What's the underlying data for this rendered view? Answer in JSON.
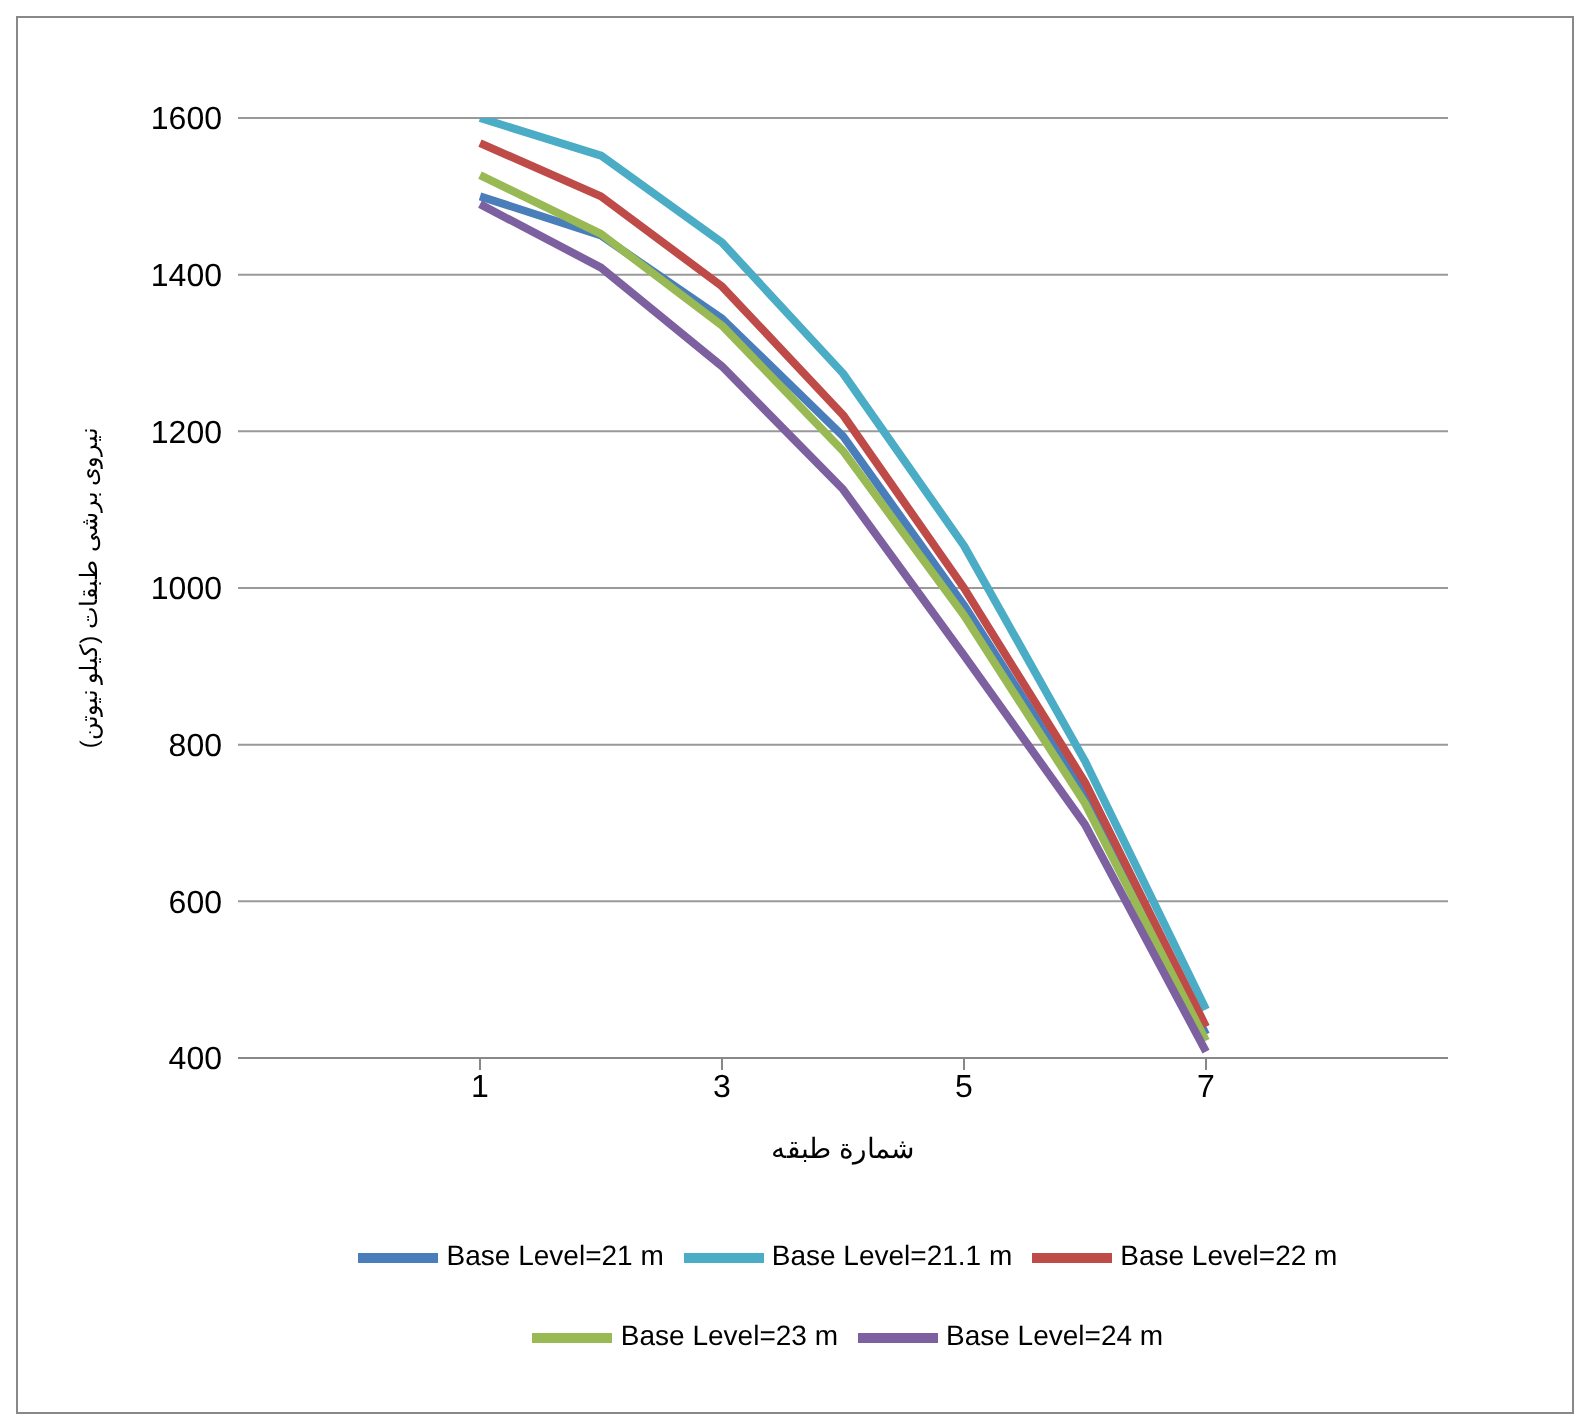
{
  "chart_data": {
    "type": "line",
    "xlabel": "شمارة طبقه",
    "ylabel": "نیروی برشی طبقات (کیلو نیوتن)",
    "x": [
      1,
      2,
      3,
      4,
      5,
      6,
      7
    ],
    "xlim": [
      -1,
      9
    ],
    "xticks": [
      1,
      3,
      5,
      7
    ],
    "ylim": [
      400,
      1600
    ],
    "yticks": [
      400,
      600,
      800,
      1000,
      1200,
      1400,
      1600
    ],
    "grid": "y",
    "legend": "bottom",
    "marker": "none",
    "line_style": "solid",
    "series": [
      {
        "name": "Base Level=21 m",
        "color": "#4a7ebb",
        "values": [
          1500,
          1450,
          1344,
          1194,
          978,
          736,
          430
        ]
      },
      {
        "name": "Base Level=21.1 m",
        "color": "#4bacc6",
        "values": [
          1600,
          1552,
          1441,
          1274,
          1054,
          779,
          462
        ]
      },
      {
        "name": "Base Level=22 m",
        "color": "#be4b48",
        "values": [
          1568,
          1500,
          1385,
          1221,
          1000,
          752,
          440
        ]
      },
      {
        "name": "Base Level=23 m",
        "color": "#98b954",
        "values": [
          1527,
          1452,
          1335,
          1175,
          965,
          725,
          422
        ]
      },
      {
        "name": "Base Level=24 m",
        "color": "#7d60a0",
        "values": [
          1490,
          1409,
          1283,
          1126,
          914,
          698,
          408
        ]
      }
    ]
  }
}
